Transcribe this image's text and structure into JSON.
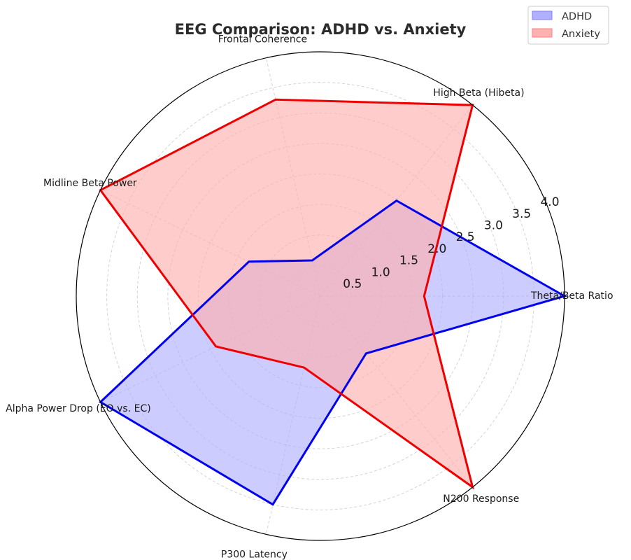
{
  "chart_data": {
    "type": "radar",
    "title": "EEG Comparison: ADHD vs. Anxiety",
    "categories": [
      "Theta/Beta Ratio",
      "High Beta (Hibeta)",
      "Frontal Coherence",
      "Midline Beta Power",
      "Alpha Power Drop (EO vs. EC)",
      "P300 Latency",
      "N200 Response"
    ],
    "series": [
      {
        "name": "ADHD",
        "values": [
          4.0,
          2.0,
          0.6,
          1.3,
          4.0,
          3.5,
          1.2
        ],
        "color": "#0000ee",
        "fill": "#b0b0ff"
      },
      {
        "name": "Anxiety",
        "values": [
          1.7,
          4.0,
          3.3,
          4.0,
          1.9,
          1.2,
          4.0
        ],
        "color": "#ee0000",
        "fill": "#ffb0b0"
      }
    ],
    "rlim": [
      0,
      4.0
    ],
    "rticks": [
      "0.5",
      "1.0",
      "1.5",
      "2.0",
      "2.5",
      "3.0",
      "3.5",
      "4.0"
    ],
    "grid": true,
    "legend": {
      "position": "top-right",
      "entries": [
        "ADHD",
        "Anxiety"
      ]
    }
  }
}
